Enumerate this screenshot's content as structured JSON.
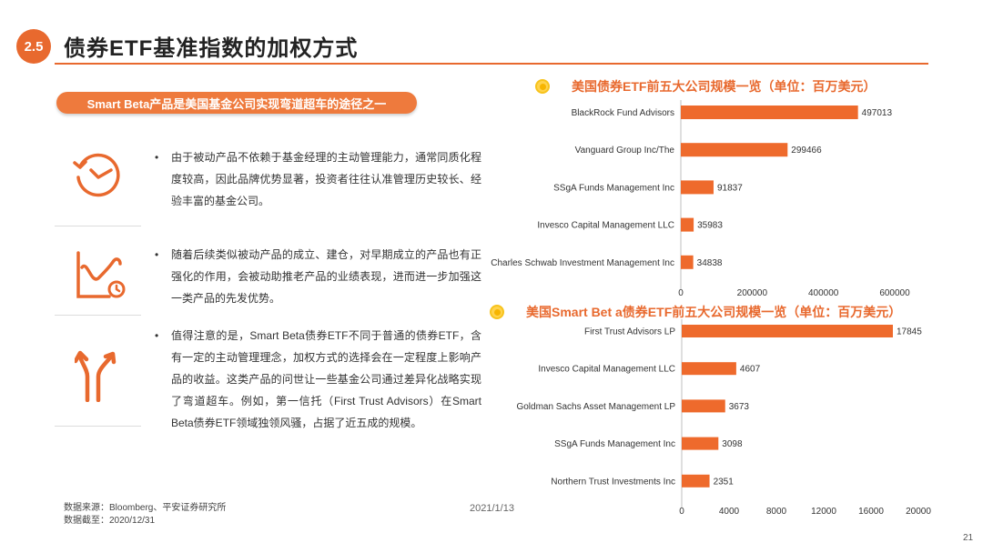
{
  "header": {
    "section": "2.5",
    "title": "债券ETF基准指数的加权方式"
  },
  "pill_label": "Smart Beta产品是美国基金公司实现弯道超车的途径之一",
  "points": [
    {
      "icon": "clock-icon",
      "text": "由于被动产品不依赖于基金经理的主动管理能力，通常同质化程度较高，因此品牌优势显著，投资者往往认准管理历史较长、经验丰富的基金公司。"
    },
    {
      "icon": "line-chart-timer-icon",
      "text": "随着后续类似被动产品的成立、建仓，对早期成立的产品也有正强化的作用，会被动助推老产品的业绩表现，进而进一步加强这一类产品的先发优势。"
    },
    {
      "icon": "diverging-arrows-icon",
      "text": "值得注意的是，Smart Beta债券ETF不同于普通的债券ETF，含有一定的主动管理理念，加权方式的选择会在一定程度上影响产品的收益。这类产品的问世让一些基金公司通过差异化战略实现了弯道超车。例如，第一信托（First Trust Advisors）在Smart Beta债券ETF领域独领风骚，占据了近五成的规模。"
    }
  ],
  "footer": {
    "source": "数据来源：Bloomberg、平安证券研究所",
    "cutoff": "数据截至：2020/12/31",
    "date": "2021/1/13",
    "page": "21"
  },
  "colors": {
    "accent": "#e8692e",
    "bar": "#ee6a2c"
  },
  "chart_data": [
    {
      "type": "bar",
      "orientation": "horizontal",
      "title": "美国债券ETF前五大公司规模一览（单位：百万美元）",
      "categories": [
        "BlackRock Fund Advisors",
        "Vanguard Group Inc/The",
        "SSgA Funds Management Inc",
        "Invesco Capital Management LLC",
        "Charles Schwab Investment Management Inc"
      ],
      "values": [
        497013,
        299466,
        91837,
        35983,
        34838
      ],
      "ticks": [
        0,
        200000,
        400000,
        600000
      ],
      "xlim": [
        0,
        600000
      ],
      "grid": false
    },
    {
      "type": "bar",
      "orientation": "horizontal",
      "title": "美国Smart Bet a债券ETF前五大公司规模一览（单位：百万美元）",
      "categories": [
        "First Trust Advisors LP",
        "Invesco Capital Management LLC",
        "Goldman Sachs Asset Management LP",
        "SSgA Funds Management Inc",
        "Northern Trust Investments Inc"
      ],
      "values": [
        17845,
        4607,
        3673,
        3098,
        2351
      ],
      "ticks": [
        0,
        4000,
        8000,
        12000,
        16000,
        20000
      ],
      "xlim": [
        0,
        20000
      ],
      "grid": false
    }
  ]
}
